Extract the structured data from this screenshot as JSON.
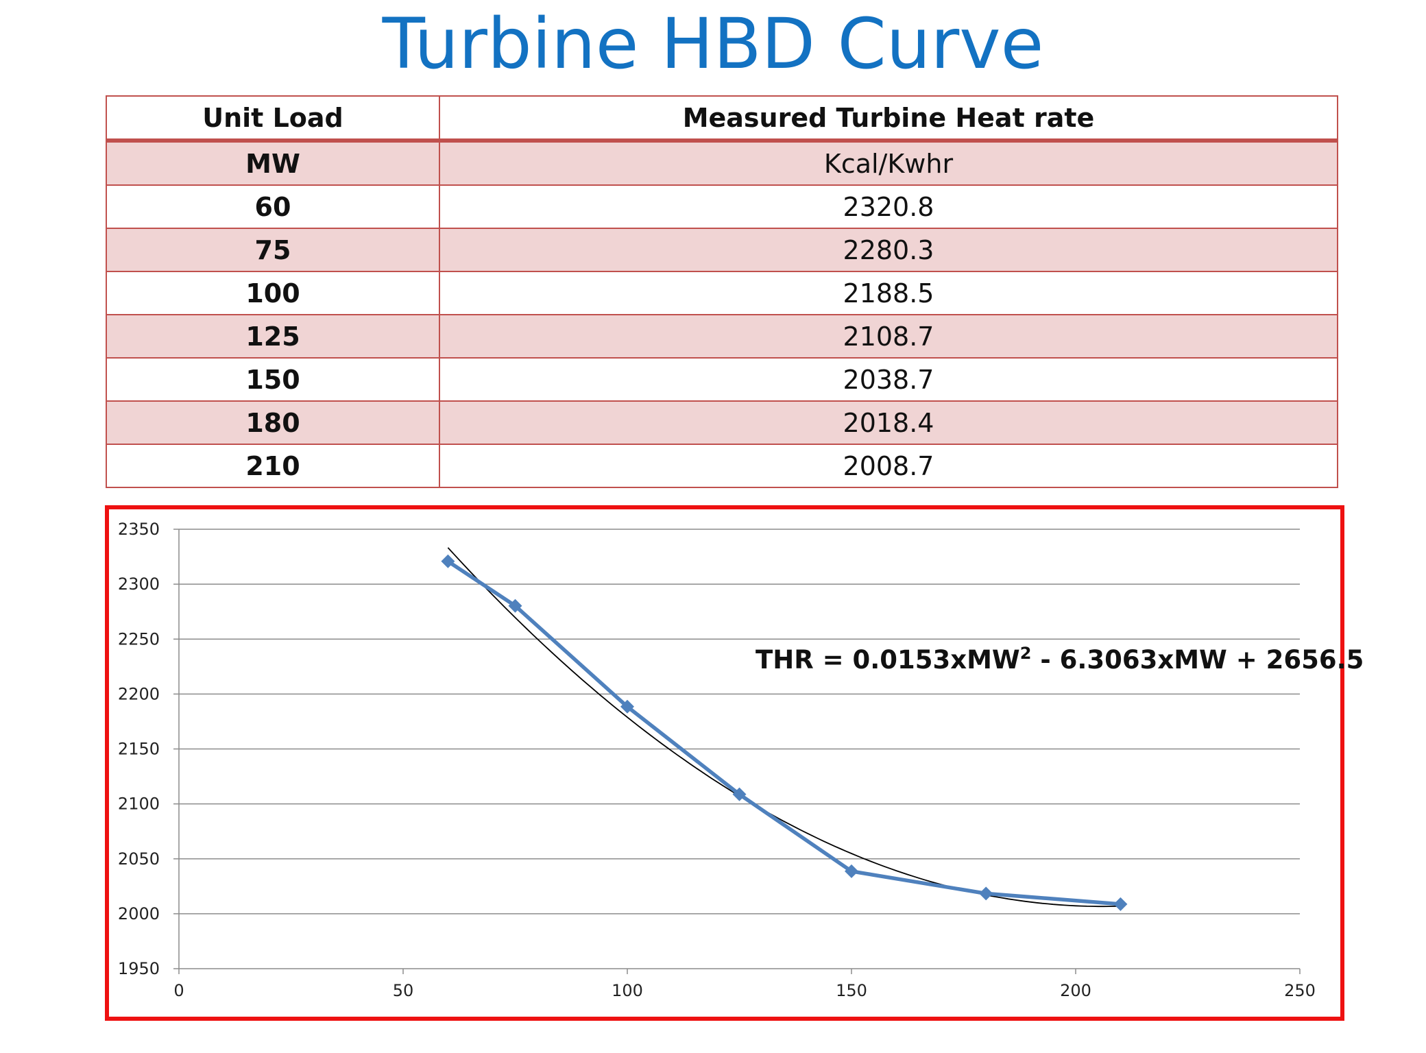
{
  "page": {
    "title": "Turbine HBD Curve"
  },
  "table": {
    "headers": [
      "Unit Load",
      "Measured Turbine Heat rate"
    ],
    "units": [
      "MW",
      "Kcal/Kwhr"
    ],
    "rows": [
      [
        "60",
        "2320.8"
      ],
      [
        "75",
        "2280.3"
      ],
      [
        "100",
        "2188.5"
      ],
      [
        "125",
        "2108.7"
      ],
      [
        "150",
        "2038.7"
      ],
      [
        "180",
        "2018.4"
      ],
      [
        "210",
        "2008.7"
      ]
    ]
  },
  "chart_data": {
    "type": "line",
    "title": "",
    "xlabel": "",
    "ylabel": "",
    "xlim": [
      0,
      250
    ],
    "ylim": [
      1950,
      2350
    ],
    "x_ticks": [
      0,
      50,
      100,
      150,
      200,
      250
    ],
    "y_ticks": [
      1950,
      2000,
      2050,
      2100,
      2150,
      2200,
      2250,
      2300,
      2350
    ],
    "grid": "horizontal",
    "series": [
      {
        "x": [
          60,
          75,
          100,
          125,
          150,
          180,
          210
        ],
        "y": [
          2320.8,
          2280.3,
          2188.5,
          2108.7,
          2038.7,
          2018.4,
          2008.7
        ],
        "color": "#4f81bd",
        "marker": "diamond"
      }
    ],
    "trendline": {
      "type": "polynomial",
      "coefficients": [
        0.0153,
        -6.3063,
        2656.5
      ],
      "x_range": [
        60,
        210
      ],
      "color": "#000000"
    },
    "annotation": {
      "prefix": "THR = 0.0153xMW",
      "superscript": "2",
      "suffix": " - 6.3063xMW + 2656.5"
    },
    "frame_color": "#ee1111"
  }
}
